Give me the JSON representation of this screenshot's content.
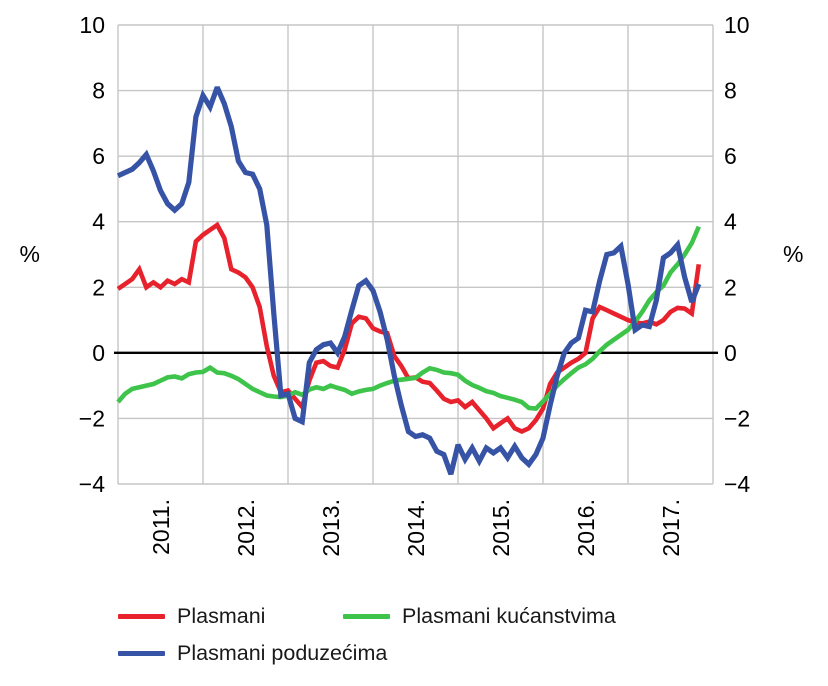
{
  "chart_data": {
    "type": "line",
    "title": "",
    "ylabel_left": "%",
    "ylabel_right": "%",
    "ylim": [
      -4,
      10
    ],
    "yticks": [
      10,
      8,
      6,
      4,
      2,
      0,
      -2,
      -4
    ],
    "ytick_labels": [
      "10",
      "8",
      "6",
      "4",
      "2",
      "0",
      "−2",
      "−4"
    ],
    "x_tick_labels": [
      "2011.",
      "2012.",
      "2013.",
      "2014.",
      "2015.",
      "2016.",
      "2017."
    ],
    "x_unit": "month",
    "x_range": "2011-01 to 2017-11",
    "grid": true,
    "zero_line": true,
    "legend_position": "bottom-left",
    "colors": {
      "grid": "#c6c6c6",
      "zero_line": "#000000",
      "text": "#000000"
    },
    "series": [
      {
        "id": "total-loans",
        "name": "Plasmani",
        "color": "#e8222d",
        "width": 4.6,
        "values": [
          1.95,
          2.1,
          2.25,
          2.55,
          2.0,
          2.15,
          2.0,
          2.2,
          2.1,
          2.25,
          2.15,
          3.4,
          3.6,
          3.75,
          3.9,
          3.5,
          2.55,
          2.45,
          2.3,
          2.0,
          1.4,
          0.2,
          -0.7,
          -1.2,
          -1.15,
          -1.4,
          -1.65,
          -0.85,
          -0.3,
          -0.25,
          -0.4,
          -0.45,
          0.1,
          0.9,
          1.1,
          1.05,
          0.75,
          0.65,
          0.6,
          -0.1,
          -0.4,
          -0.78,
          -0.75,
          -0.88,
          -0.92,
          -1.15,
          -1.4,
          -1.5,
          -1.45,
          -1.65,
          -1.5,
          -1.75,
          -2.0,
          -2.3,
          -2.15,
          -2.0,
          -2.3,
          -2.4,
          -2.3,
          -2.05,
          -1.7,
          -0.95,
          -0.6,
          -0.45,
          -0.3,
          -0.18,
          0.0,
          1.05,
          1.4,
          1.3,
          1.2,
          1.1,
          1.0,
          0.93,
          0.9,
          0.95,
          0.87,
          1.0,
          1.25,
          1.37,
          1.35,
          1.2,
          2.7
        ]
      },
      {
        "id": "household-loans",
        "name": "Plasmani kućanstvima",
        "color": "#3ec44a",
        "width": 4.6,
        "values": [
          -1.5,
          -1.25,
          -1.1,
          -1.05,
          -1.0,
          -0.95,
          -0.85,
          -0.75,
          -0.72,
          -0.78,
          -0.65,
          -0.6,
          -0.58,
          -0.45,
          -0.6,
          -0.62,
          -0.7,
          -0.8,
          -0.95,
          -1.1,
          -1.2,
          -1.3,
          -1.33,
          -1.35,
          -1.3,
          -1.2,
          -1.28,
          -1.12,
          -1.05,
          -1.1,
          -1.0,
          -1.07,
          -1.13,
          -1.25,
          -1.18,
          -1.13,
          -1.1,
          -1.0,
          -0.92,
          -0.85,
          -0.82,
          -0.79,
          -0.76,
          -0.6,
          -0.47,
          -0.52,
          -0.6,
          -0.62,
          -0.67,
          -0.85,
          -0.98,
          -1.07,
          -1.17,
          -1.22,
          -1.32,
          -1.37,
          -1.43,
          -1.5,
          -1.68,
          -1.7,
          -1.48,
          -1.25,
          -1.0,
          -0.8,
          -0.62,
          -0.45,
          -0.35,
          -0.18,
          0.05,
          0.25,
          0.4,
          0.55,
          0.7,
          0.95,
          1.25,
          1.6,
          1.85,
          2.05,
          2.45,
          2.7,
          3.0,
          3.35,
          3.85
        ]
      },
      {
        "id": "enterprise-loans",
        "name": "Plasmani poduzećima",
        "color": "#3653a5",
        "width": 5.2,
        "values": [
          5.4,
          5.5,
          5.6,
          5.8,
          6.05,
          5.55,
          4.95,
          4.55,
          4.35,
          4.55,
          5.2,
          7.2,
          7.85,
          7.5,
          8.1,
          7.6,
          6.9,
          5.85,
          5.5,
          5.45,
          5.0,
          3.9,
          1.2,
          -1.3,
          -1.25,
          -2.0,
          -2.1,
          -0.3,
          0.1,
          0.25,
          0.3,
          0.0,
          0.5,
          1.3,
          2.05,
          2.2,
          1.9,
          1.25,
          0.4,
          -0.7,
          -1.6,
          -2.4,
          -2.55,
          -2.5,
          -2.6,
          -3.0,
          -3.1,
          -3.7,
          -2.8,
          -3.25,
          -2.9,
          -3.3,
          -2.9,
          -3.05,
          -2.9,
          -3.2,
          -2.85,
          -3.2,
          -3.4,
          -3.1,
          -2.6,
          -1.6,
          -0.7,
          0.0,
          0.3,
          0.45,
          1.3,
          1.25,
          2.2,
          3.0,
          3.05,
          3.25,
          2.1,
          0.7,
          0.85,
          0.8,
          1.6,
          2.9,
          3.05,
          3.3,
          2.3,
          1.55,
          2.1
        ]
      }
    ]
  },
  "legend": {
    "items": [
      {
        "label": "Plasmani"
      },
      {
        "label": "Plasmani kućanstvima"
      },
      {
        "label": "Plasmani poduzećima"
      }
    ]
  }
}
